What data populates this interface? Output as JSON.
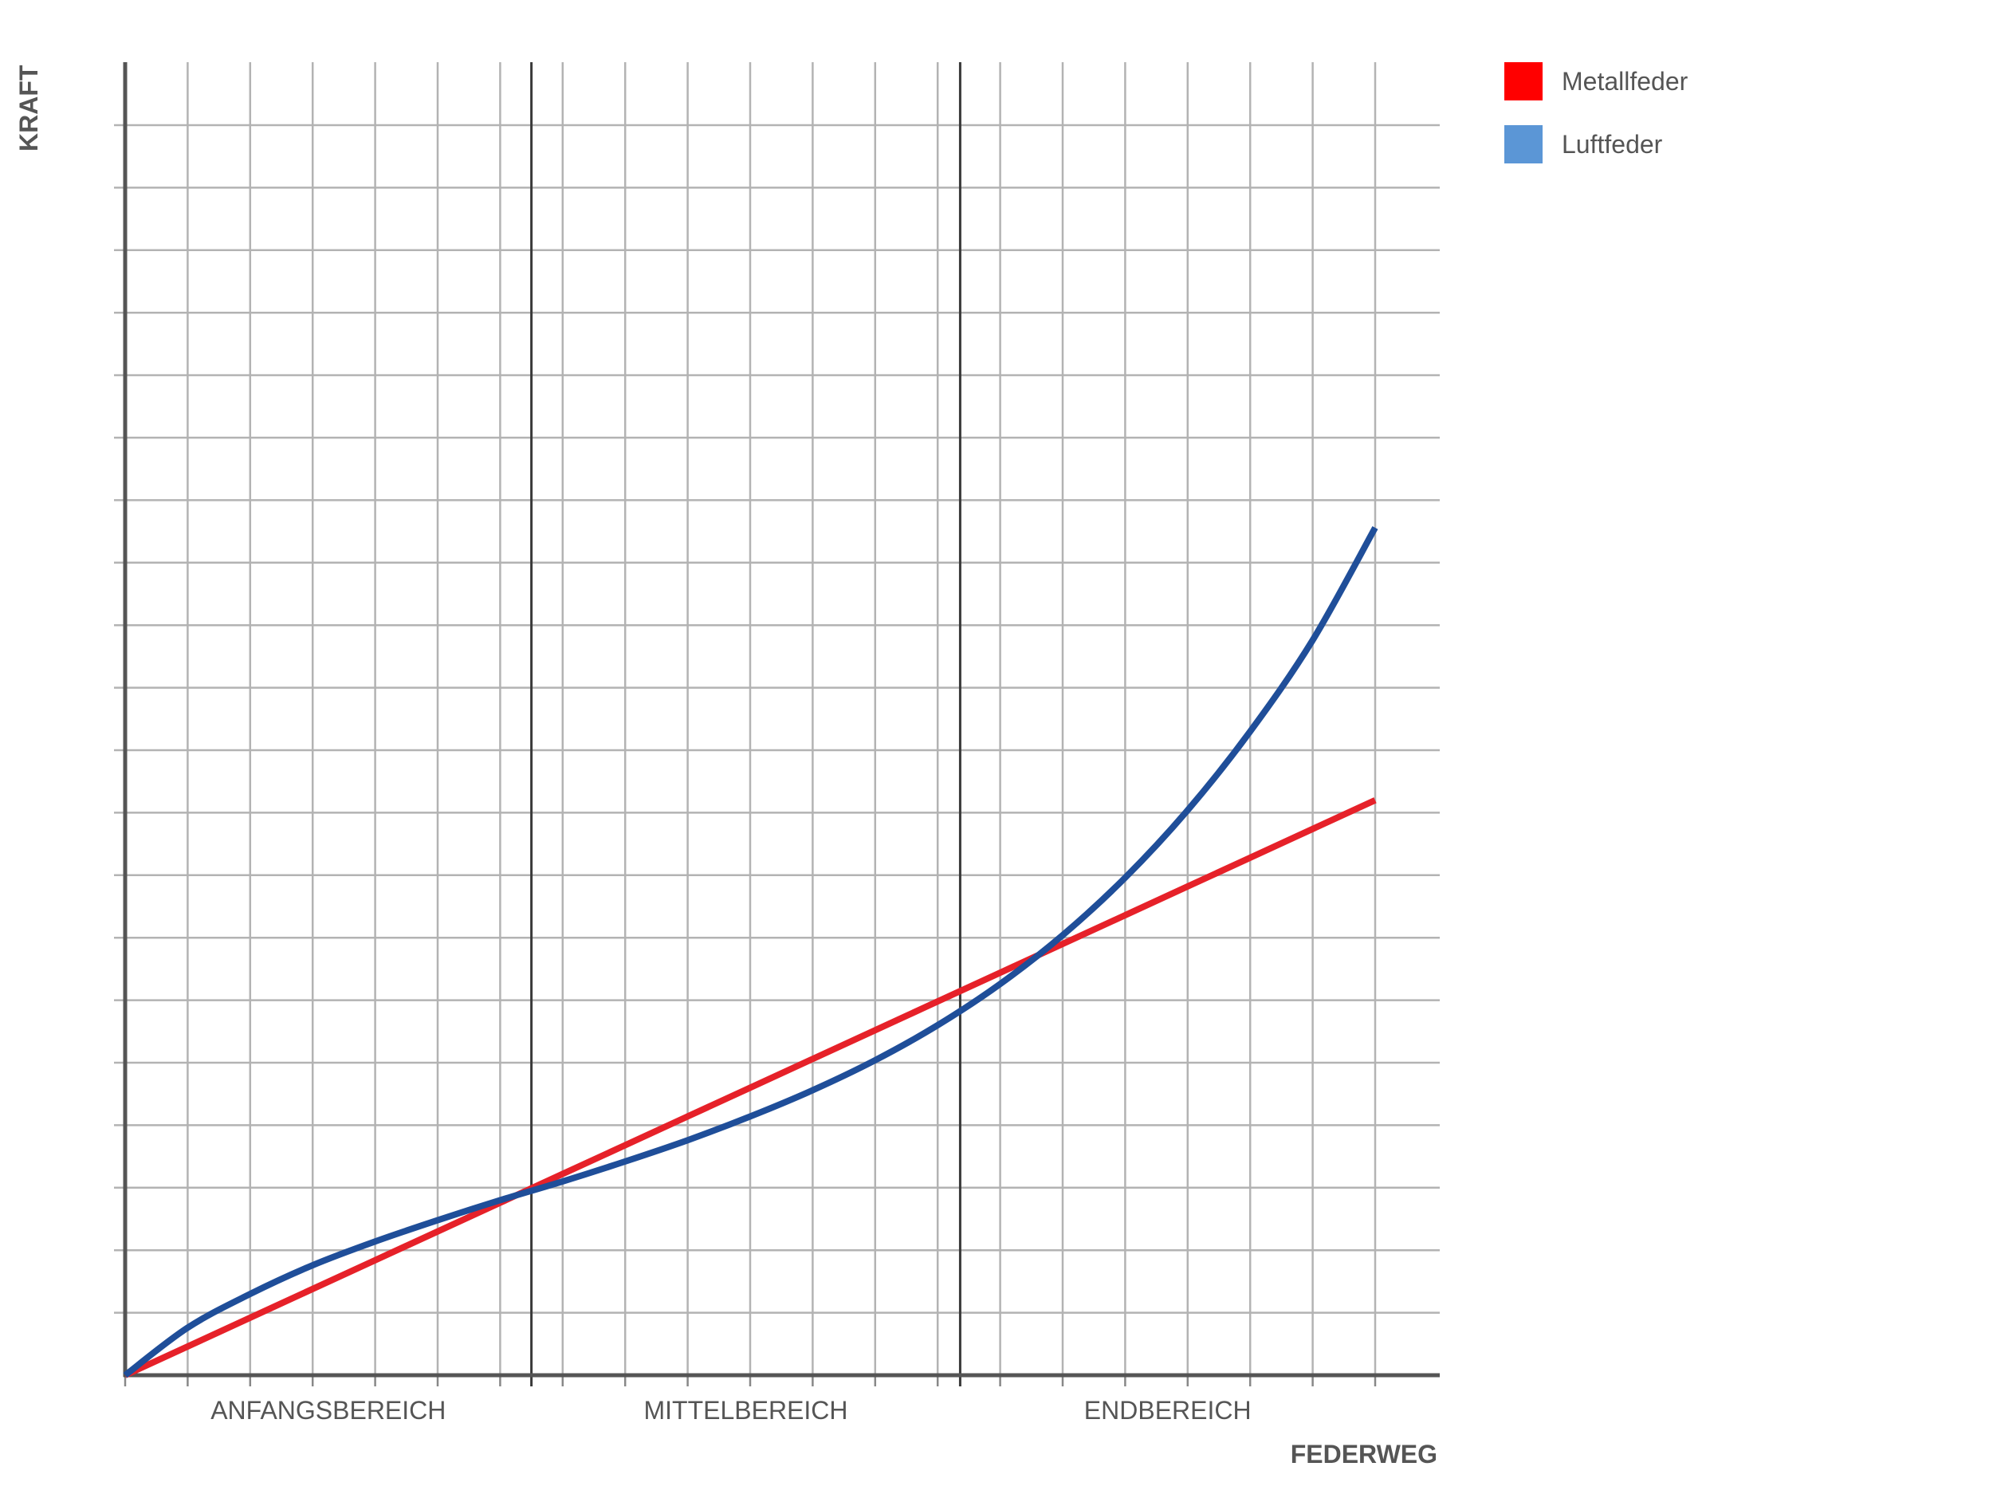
{
  "chart_data": {
    "type": "line",
    "title": "",
    "xlabel": "FEDERWEG",
    "ylabel": "KRAFT",
    "xlim": [
      0,
      1.05
    ],
    "ylim": [
      0,
      1.05
    ],
    "grid": true,
    "x_ticks_count": 21,
    "y_ticks_count": 21,
    "regions": [
      {
        "label": "ANFANGSBEREICH",
        "from": 0.0,
        "to": 0.325
      },
      {
        "label": "MITTELBEREICH",
        "from": 0.325,
        "to": 0.668
      },
      {
        "label": "ENDBEREICH",
        "from": 0.668,
        "to": 1.0
      }
    ],
    "legend_position": "top-right",
    "series": [
      {
        "name": "Metallfeder",
        "color": "#e62129",
        "legend_color": "#ff0000",
        "x": [
          0.0,
          0.1,
          0.2,
          0.3,
          0.4,
          0.5,
          0.6,
          0.7,
          0.8,
          0.9,
          1.0
        ],
        "y": [
          0.0,
          0.046,
          0.092,
          0.138,
          0.184,
          0.23,
          0.276,
          0.322,
          0.368,
          0.414,
          0.46
        ]
      },
      {
        "name": "Luftfeder",
        "color": "#1f4e99",
        "legend_color": "#5b96d6",
        "x": [
          0.0,
          0.05,
          0.1,
          0.15,
          0.2,
          0.25,
          0.3,
          0.35,
          0.4,
          0.45,
          0.5,
          0.55,
          0.6,
          0.65,
          0.7,
          0.75,
          0.8,
          0.85,
          0.9,
          0.95,
          1.0
        ],
        "y": [
          0.0,
          0.038,
          0.065,
          0.088,
          0.107,
          0.124,
          0.14,
          0.155,
          0.171,
          0.188,
          0.207,
          0.228,
          0.252,
          0.28,
          0.313,
          0.352,
          0.398,
          0.452,
          0.515,
          0.588,
          0.678
        ]
      }
    ]
  }
}
